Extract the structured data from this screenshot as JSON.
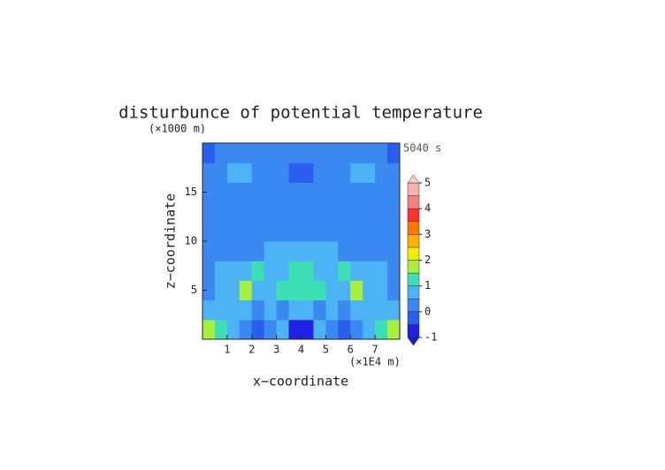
{
  "chart_data": {
    "type": "contour",
    "title": "disturbunce of potential temperature",
    "y_unit": "(×1000 m)",
    "x_unit": "(×1E4 m)",
    "time_label": "5040 s",
    "xlabel": "x−coordinate",
    "ylabel": "z−coordinate",
    "xlim": [
      0,
      8
    ],
    "ylim": [
      0,
      20
    ],
    "xticks": [
      1,
      2,
      3,
      4,
      5,
      6,
      7
    ],
    "yticks": [
      5,
      10,
      15
    ],
    "x": [
      0.25,
      0.75,
      1.25,
      1.75,
      2.25,
      2.75,
      3.25,
      3.75,
      4.25,
      4.75,
      5.25,
      5.75,
      6.25,
      6.75,
      7.25,
      7.75
    ],
    "y": [
      1,
      3,
      5,
      7,
      9,
      11,
      13,
      15,
      17,
      19
    ],
    "z": [
      [
        1.6,
        1.2,
        0.6,
        0.3,
        -0.3,
        0.3,
        0.7,
        -0.6,
        -0.6,
        0.7,
        0.3,
        -0.3,
        0.3,
        0.6,
        1.2,
        1.6
      ],
      [
        0.7,
        0.6,
        0.5,
        0.7,
        0.4,
        0.8,
        0.4,
        0.8,
        0.8,
        0.4,
        0.8,
        0.4,
        0.7,
        0.5,
        0.6,
        0.7
      ],
      [
        0.4,
        0.6,
        0.9,
        1.6,
        0.8,
        0.9,
        1.1,
        1.3,
        1.3,
        1.1,
        0.9,
        0.8,
        1.6,
        0.9,
        0.6,
        0.4
      ],
      [
        0.2,
        0.5,
        0.7,
        0.8,
        1.0,
        0.6,
        0.7,
        1.2,
        1.2,
        0.7,
        0.6,
        1.0,
        0.8,
        0.7,
        0.5,
        0.2
      ],
      [
        0.1,
        0.2,
        0.3,
        0.4,
        0.3,
        0.6,
        0.6,
        0.9,
        0.9,
        0.6,
        0.6,
        0.3,
        0.4,
        0.3,
        0.2,
        0.1
      ],
      [
        0.3,
        0.2,
        0.2,
        0.2,
        0.2,
        0.2,
        0.4,
        0.3,
        0.3,
        0.4,
        0.2,
        0.2,
        0.2,
        0.2,
        0.2,
        0.3
      ],
      [
        0.1,
        0.2,
        0.3,
        0.2,
        0.2,
        0.3,
        0.2,
        0.2,
        0.2,
        0.2,
        0.3,
        0.2,
        0.2,
        0.3,
        0.2,
        0.1
      ],
      [
        0.2,
        0.3,
        0.3,
        0.2,
        0.2,
        0.1,
        0.2,
        0.2,
        0.2,
        0.2,
        0.1,
        0.2,
        0.2,
        0.3,
        0.3,
        0.2
      ],
      [
        0.2,
        0.3,
        0.5,
        0.5,
        0.3,
        0.2,
        0.1,
        -0.2,
        -0.2,
        0.1,
        0.2,
        0.3,
        0.5,
        0.5,
        0.3,
        0.2
      ],
      [
        -0.1,
        0.3,
        0.3,
        0.4,
        0.3,
        0.2,
        0.3,
        0.3,
        0.3,
        0.3,
        0.2,
        0.3,
        0.4,
        0.3,
        0.3,
        -0.1
      ]
    ],
    "levels": [
      -1,
      -0.5,
      0,
      0.5,
      1,
      1.5,
      2,
      2.5,
      3,
      3.5,
      4,
      4.5,
      5
    ],
    "colors": [
      "#1f1fe6",
      "#2a5ef0",
      "#3a88f0",
      "#4cb4f4",
      "#3ce0b4",
      "#a8f040",
      "#f0f000",
      "#ffb000",
      "#ff7800",
      "#ff3030",
      "#f08080",
      "#f4b4b4"
    ],
    "under_color": "#1a1ad0",
    "over_color": "#f8d0d0",
    "colorbar_ticks": [
      -1,
      0,
      1,
      2,
      3,
      4,
      5
    ]
  }
}
